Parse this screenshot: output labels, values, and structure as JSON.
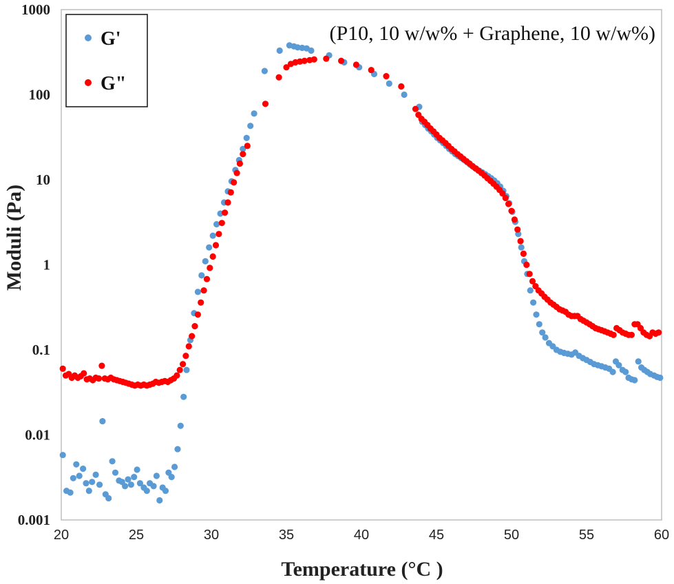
{
  "chart_data": {
    "type": "scatter",
    "title": "",
    "annotation": "(P10, 10 w/w% + Graphene, 10 w/w%)",
    "xlabel": "Temperature (°C )",
    "ylabel": "Moduli (Pa)",
    "xlim": [
      20,
      60
    ],
    "ylim": [
      0.001,
      1000
    ],
    "yscale": "log",
    "x_ticks": [
      "20",
      "25",
      "30",
      "35",
      "40",
      "45",
      "50",
      "55",
      "60"
    ],
    "y_ticks": [
      "0.001",
      "0.01",
      "0.1",
      "1",
      "10",
      "100",
      "1000"
    ],
    "grid": false,
    "legend_position": "top-left",
    "series": [
      {
        "name": "G'",
        "color": "#5b9bd5",
        "points": [
          [
            20.1,
            0.0058
          ],
          [
            20.35,
            0.0022
          ],
          [
            20.6,
            0.0021
          ],
          [
            20.8,
            0.0031
          ],
          [
            21.0,
            0.0045
          ],
          [
            21.2,
            0.0033
          ],
          [
            21.45,
            0.004
          ],
          [
            21.65,
            0.0027
          ],
          [
            21.85,
            0.0022
          ],
          [
            22.05,
            0.0028
          ],
          [
            22.3,
            0.0034
          ],
          [
            22.55,
            0.0026
          ],
          [
            22.75,
            0.0145
          ],
          [
            22.95,
            0.002
          ],
          [
            23.15,
            0.0018
          ],
          [
            23.4,
            0.0049
          ],
          [
            23.6,
            0.0036
          ],
          [
            23.85,
            0.0029
          ],
          [
            24.05,
            0.0028
          ],
          [
            24.25,
            0.0025
          ],
          [
            24.45,
            0.003
          ],
          [
            24.65,
            0.0026
          ],
          [
            24.85,
            0.0032
          ],
          [
            25.05,
            0.0039
          ],
          [
            25.25,
            0.0027
          ],
          [
            25.5,
            0.0024
          ],
          [
            25.7,
            0.0022
          ],
          [
            25.9,
            0.0027
          ],
          [
            26.15,
            0.0025
          ],
          [
            26.35,
            0.0033
          ],
          [
            26.55,
            0.0017
          ],
          [
            26.75,
            0.0024
          ],
          [
            26.95,
            0.0022
          ],
          [
            27.15,
            0.0036
          ],
          [
            27.35,
            0.0032
          ],
          [
            27.55,
            0.0042
          ],
          [
            27.75,
            0.0068
          ],
          [
            27.95,
            0.0128
          ],
          [
            28.15,
            0.028
          ],
          [
            28.35,
            0.058
          ],
          [
            28.6,
            0.13
          ],
          [
            28.85,
            0.27
          ],
          [
            29.1,
            0.48
          ],
          [
            29.35,
            0.75
          ],
          [
            29.6,
            1.1
          ],
          [
            29.85,
            1.6
          ],
          [
            30.1,
            2.2
          ],
          [
            30.35,
            3.0
          ],
          [
            30.6,
            4.0
          ],
          [
            30.85,
            5.4
          ],
          [
            31.1,
            7.3
          ],
          [
            31.35,
            9.6
          ],
          [
            31.6,
            13
          ],
          [
            31.85,
            17
          ],
          [
            32.1,
            23
          ],
          [
            32.35,
            31
          ],
          [
            32.6,
            43
          ],
          [
            32.85,
            60
          ],
          [
            33.55,
            190
          ],
          [
            34.55,
            330
          ],
          [
            35.2,
            380
          ],
          [
            35.5,
            370
          ],
          [
            35.75,
            360
          ],
          [
            36.05,
            355
          ],
          [
            36.35,
            350
          ],
          [
            36.65,
            330
          ],
          [
            37.85,
            290
          ],
          [
            38.85,
            240
          ],
          [
            39.85,
            210
          ],
          [
            40.85,
            175
          ],
          [
            41.85,
            135
          ],
          [
            42.85,
            100
          ],
          [
            43.85,
            72
          ],
          [
            44.05,
            48
          ],
          [
            44.25,
            44
          ],
          [
            44.45,
            40
          ],
          [
            44.65,
            37
          ],
          [
            44.85,
            34
          ],
          [
            45.05,
            31
          ],
          [
            45.25,
            29
          ],
          [
            45.45,
            27
          ],
          [
            45.65,
            25
          ],
          [
            45.85,
            23
          ],
          [
            46.05,
            21.5
          ],
          [
            46.25,
            20
          ],
          [
            46.45,
            19
          ],
          [
            46.65,
            18
          ],
          [
            46.85,
            17
          ],
          [
            47.05,
            16
          ],
          [
            47.25,
            15
          ],
          [
            47.45,
            14.2
          ],
          [
            47.65,
            13.5
          ],
          [
            47.85,
            12.8
          ],
          [
            48.05,
            12.2
          ],
          [
            48.25,
            11.6
          ],
          [
            48.45,
            11
          ],
          [
            48.65,
            10.4
          ],
          [
            48.85,
            9.8
          ],
          [
            49.05,
            9.1
          ],
          [
            49.25,
            8.3
          ],
          [
            49.45,
            7.4
          ],
          [
            49.65,
            6.4
          ],
          [
            49.85,
            5.3
          ],
          [
            50.05,
            4.2
          ],
          [
            50.25,
            3.2
          ],
          [
            50.45,
            2.3
          ],
          [
            50.65,
            1.6
          ],
          [
            50.85,
            1.1
          ],
          [
            51.05,
            0.78
          ],
          [
            51.25,
            0.5
          ],
          [
            51.45,
            0.36
          ],
          [
            51.65,
            0.26
          ],
          [
            51.85,
            0.2
          ],
          [
            52.05,
            0.16
          ],
          [
            52.25,
            0.14
          ],
          [
            52.5,
            0.12
          ],
          [
            52.75,
            0.11
          ],
          [
            53.0,
            0.1
          ],
          [
            53.25,
            0.095
          ],
          [
            53.5,
            0.092
          ],
          [
            53.75,
            0.09
          ],
          [
            54.0,
            0.088
          ],
          [
            54.25,
            0.093
          ],
          [
            54.5,
            0.085
          ],
          [
            54.75,
            0.08
          ],
          [
            55.0,
            0.076
          ],
          [
            55.25,
            0.072
          ],
          [
            55.5,
            0.068
          ],
          [
            55.75,
            0.066
          ],
          [
            56.0,
            0.064
          ],
          [
            56.25,
            0.062
          ],
          [
            56.5,
            0.06
          ],
          [
            56.75,
            0.055
          ],
          [
            56.95,
            0.073
          ],
          [
            57.15,
            0.066
          ],
          [
            57.4,
            0.058
          ],
          [
            57.6,
            0.055
          ],
          [
            57.8,
            0.047
          ],
          [
            58.0,
            0.045
          ],
          [
            58.2,
            0.044
          ],
          [
            58.45,
            0.073
          ],
          [
            58.65,
            0.062
          ],
          [
            58.85,
            0.058
          ],
          [
            59.05,
            0.055
          ],
          [
            59.25,
            0.052
          ],
          [
            59.5,
            0.05
          ],
          [
            59.7,
            0.048
          ],
          [
            59.9,
            0.047
          ]
        ]
      },
      {
        "name": "G\"",
        "color": "#ff0000",
        "points": [
          [
            20.1,
            0.06
          ],
          [
            20.3,
            0.05
          ],
          [
            20.5,
            0.052
          ],
          [
            20.7,
            0.047
          ],
          [
            20.9,
            0.05
          ],
          [
            21.1,
            0.047
          ],
          [
            21.3,
            0.049
          ],
          [
            21.5,
            0.053
          ],
          [
            21.7,
            0.045
          ],
          [
            21.9,
            0.046
          ],
          [
            22.1,
            0.044
          ],
          [
            22.3,
            0.047
          ],
          [
            22.5,
            0.046
          ],
          [
            22.7,
            0.065
          ],
          [
            22.9,
            0.046
          ],
          [
            23.1,
            0.045
          ],
          [
            23.3,
            0.047
          ],
          [
            23.5,
            0.045
          ],
          [
            23.7,
            0.044
          ],
          [
            23.9,
            0.043
          ],
          [
            24.1,
            0.042
          ],
          [
            24.3,
            0.041
          ],
          [
            24.5,
            0.04
          ],
          [
            24.7,
            0.039
          ],
          [
            24.9,
            0.038
          ],
          [
            25.1,
            0.039
          ],
          [
            25.3,
            0.038
          ],
          [
            25.5,
            0.039
          ],
          [
            25.7,
            0.038
          ],
          [
            25.9,
            0.039
          ],
          [
            26.1,
            0.04
          ],
          [
            26.3,
            0.042
          ],
          [
            26.5,
            0.041
          ],
          [
            26.7,
            0.042
          ],
          [
            26.9,
            0.043
          ],
          [
            27.1,
            0.042
          ],
          [
            27.3,
            0.044
          ],
          [
            27.5,
            0.046
          ],
          [
            27.7,
            0.05
          ],
          [
            27.9,
            0.058
          ],
          [
            28.1,
            0.068
          ],
          [
            28.3,
            0.085
          ],
          [
            28.5,
            0.11
          ],
          [
            28.7,
            0.145
          ],
          [
            28.9,
            0.19
          ],
          [
            29.1,
            0.26
          ],
          [
            29.3,
            0.36
          ],
          [
            29.5,
            0.5
          ],
          [
            29.7,
            0.68
          ],
          [
            29.9,
            0.92
          ],
          [
            30.1,
            1.25
          ],
          [
            30.3,
            1.7
          ],
          [
            30.5,
            2.3
          ],
          [
            30.7,
            3.1
          ],
          [
            30.9,
            4.1
          ],
          [
            31.1,
            5.4
          ],
          [
            31.3,
            7.1
          ],
          [
            31.5,
            9.3
          ],
          [
            31.7,
            12
          ],
          [
            31.9,
            15.5
          ],
          [
            32.1,
            20
          ],
          [
            32.4,
            25
          ],
          [
            33.6,
            78
          ],
          [
            34.5,
            160
          ],
          [
            35.0,
            210
          ],
          [
            35.3,
            230
          ],
          [
            35.6,
            240
          ],
          [
            35.9,
            245
          ],
          [
            36.2,
            250
          ],
          [
            36.55,
            255
          ],
          [
            36.85,
            260
          ],
          [
            37.65,
            265
          ],
          [
            38.65,
            250
          ],
          [
            39.65,
            225
          ],
          [
            40.65,
            195
          ],
          [
            41.65,
            165
          ],
          [
            42.65,
            125
          ],
          [
            43.6,
            68
          ],
          [
            43.8,
            58
          ],
          [
            44.0,
            52
          ],
          [
            44.2,
            48
          ],
          [
            44.4,
            44
          ],
          [
            44.6,
            40
          ],
          [
            44.8,
            37
          ],
          [
            45.0,
            34
          ],
          [
            45.2,
            31
          ],
          [
            45.4,
            29
          ],
          [
            45.6,
            27
          ],
          [
            45.8,
            25
          ],
          [
            46.0,
            23
          ],
          [
            46.2,
            21.5
          ],
          [
            46.4,
            20
          ],
          [
            46.6,
            18.8
          ],
          [
            46.8,
            17.6
          ],
          [
            47.0,
            16.5
          ],
          [
            47.2,
            15.5
          ],
          [
            47.4,
            14.5
          ],
          [
            47.6,
            13.6
          ],
          [
            47.8,
            12.8
          ],
          [
            48.0,
            12
          ],
          [
            48.2,
            11.2
          ],
          [
            48.4,
            10.4
          ],
          [
            48.6,
            9.7
          ],
          [
            48.8,
            9.0
          ],
          [
            49.0,
            8.3
          ],
          [
            49.2,
            7.6
          ],
          [
            49.4,
            6.9
          ],
          [
            49.6,
            6.1
          ],
          [
            49.8,
            5.2
          ],
          [
            50.0,
            4.3
          ],
          [
            50.2,
            3.4
          ],
          [
            50.4,
            2.6
          ],
          [
            50.6,
            1.9
          ],
          [
            50.8,
            1.35
          ],
          [
            51.0,
            1.0
          ],
          [
            51.2,
            0.78
          ],
          [
            51.4,
            0.64
          ],
          [
            51.6,
            0.56
          ],
          [
            51.8,
            0.5
          ],
          [
            52.0,
            0.46
          ],
          [
            52.2,
            0.42
          ],
          [
            52.4,
            0.39
          ],
          [
            52.6,
            0.36
          ],
          [
            52.8,
            0.34
          ],
          [
            53.0,
            0.32
          ],
          [
            53.2,
            0.3
          ],
          [
            53.4,
            0.29
          ],
          [
            53.6,
            0.28
          ],
          [
            53.8,
            0.26
          ],
          [
            54.0,
            0.25
          ],
          [
            54.2,
            0.25
          ],
          [
            54.4,
            0.25
          ],
          [
            54.6,
            0.23
          ],
          [
            54.8,
            0.22
          ],
          [
            55.0,
            0.21
          ],
          [
            55.2,
            0.2
          ],
          [
            55.4,
            0.19
          ],
          [
            55.6,
            0.18
          ],
          [
            55.8,
            0.175
          ],
          [
            56.0,
            0.17
          ],
          [
            56.2,
            0.165
          ],
          [
            56.4,
            0.16
          ],
          [
            56.6,
            0.155
          ],
          [
            56.8,
            0.15
          ],
          [
            57.0,
            0.18
          ],
          [
            57.2,
            0.17
          ],
          [
            57.4,
            0.16
          ],
          [
            57.6,
            0.155
          ],
          [
            57.8,
            0.15
          ],
          [
            58.0,
            0.15
          ],
          [
            58.2,
            0.2
          ],
          [
            58.4,
            0.2
          ],
          [
            58.6,
            0.18
          ],
          [
            58.8,
            0.16
          ],
          [
            59.0,
            0.15
          ],
          [
            59.2,
            0.145
          ],
          [
            59.4,
            0.16
          ],
          [
            59.6,
            0.155
          ],
          [
            59.8,
            0.16
          ]
        ]
      }
    ]
  }
}
